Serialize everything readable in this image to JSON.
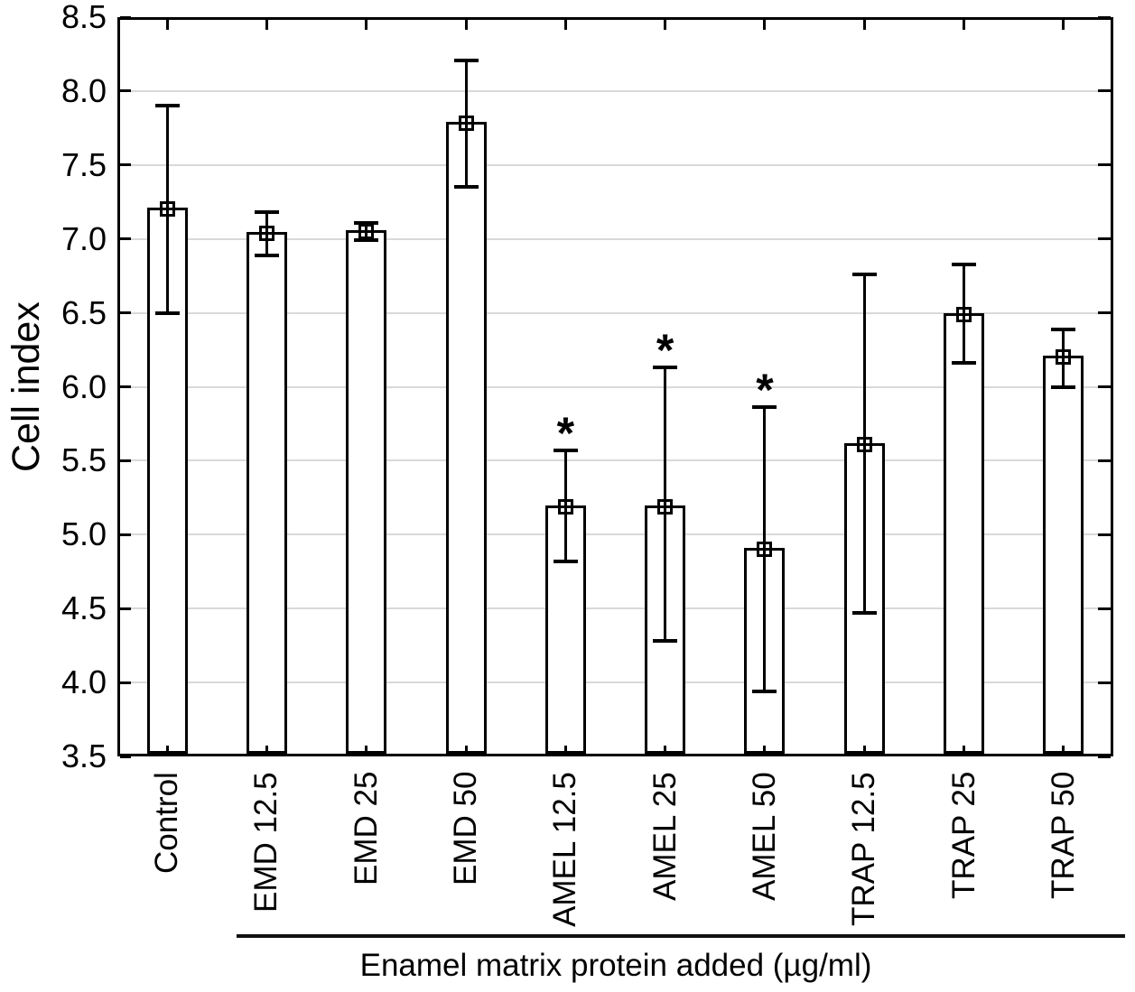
{
  "figure": {
    "background": "#ffffff",
    "significance_marker": "*"
  },
  "chart_data": {
    "type": "bar",
    "title": "",
    "ylabel": "Cell index",
    "xlabel": "Enamel matrix protein added (µg/ml)",
    "ylim": [
      3.5,
      8.5
    ],
    "ytick_step": 0.5,
    "ytick_labels": [
      "8.5",
      "8.0",
      "7.5",
      "7.0",
      "6.5",
      "6.0",
      "5.5",
      "5.0",
      "4.5",
      "4.0",
      "3.5"
    ],
    "grid": true,
    "legend": "none",
    "bar_fill": "#ffffff",
    "line_color": "#000000",
    "grid_color": "#d9d9d9",
    "mean_marker": "square-plus",
    "categories": [
      "Control",
      "EMD 12.5",
      "EMD 25",
      "EMD 50",
      "AMEL 12.5",
      "AMEL 25",
      "AMEL 50",
      "TRAP 12.5",
      "TRAP 25",
      "TRAP 50"
    ],
    "series": [
      {
        "name": "Cell index",
        "values": [
          7.2,
          7.04,
          7.05,
          7.78,
          5.19,
          5.19,
          4.9,
          5.61,
          6.49,
          6.2
        ],
        "error_low": [
          6.5,
          6.89,
          6.99,
          7.35,
          4.82,
          4.28,
          3.94,
          4.47,
          6.16,
          6.0
        ],
        "error_high": [
          7.9,
          7.18,
          7.11,
          8.21,
          5.57,
          6.13,
          5.86,
          6.76,
          6.83,
          6.39
        ],
        "significant": [
          false,
          false,
          false,
          false,
          true,
          true,
          true,
          false,
          false,
          false
        ]
      }
    ],
    "bracket": {
      "from_category": "EMD 12.5",
      "to_category": "TRAP 50",
      "label": "Enamel matrix protein added (µg/ml)"
    }
  }
}
